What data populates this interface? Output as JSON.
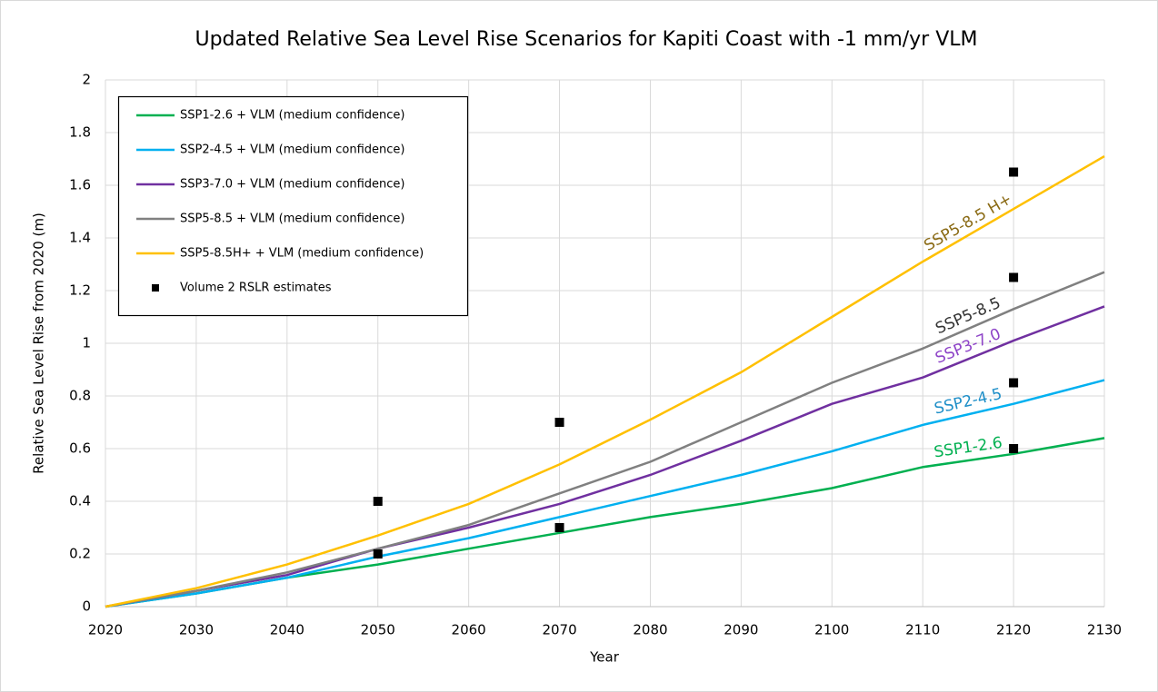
{
  "chart_data": {
    "type": "line",
    "title": "Updated Relative Sea Level Rise Scenarios for Kapiti Coast with -1 mm/yr VLM",
    "x_label": "Year",
    "y_label": "Relative Sea Level Rise from 2020 (m)",
    "x": [
      2020,
      2030,
      2040,
      2050,
      2060,
      2070,
      2080,
      2090,
      2100,
      2110,
      2120,
      2130
    ],
    "xlim": [
      2020,
      2130
    ],
    "xticks": [
      2020,
      2030,
      2040,
      2050,
      2060,
      2070,
      2080,
      2090,
      2100,
      2110,
      2120,
      2130
    ],
    "ylim": [
      0,
      2
    ],
    "yticks": [
      0,
      0.2,
      0.4,
      0.6,
      0.8,
      1,
      1.2,
      1.4,
      1.6,
      1.8,
      2
    ],
    "grid": true,
    "legend": "top-left",
    "series": [
      {
        "name": "SSP1-2.6 + VLM (medium confidence)",
        "color": "#00b050",
        "label": "SSP1-2.6",
        "label_color": "#00b050",
        "values": [
          0,
          0.05,
          0.11,
          0.16,
          0.22,
          0.28,
          0.34,
          0.39,
          0.45,
          0.53,
          0.58,
          0.64
        ]
      },
      {
        "name": "SSP2-4.5 + VLM (medium confidence)",
        "color": "#00b0f0",
        "label": "SSP2-4.5",
        "label_color": "#1f8fc8",
        "values": [
          0,
          0.05,
          0.11,
          0.19,
          0.26,
          0.34,
          0.42,
          0.5,
          0.59,
          0.69,
          0.77,
          0.86
        ]
      },
      {
        "name": "SSP3-7.0 + VLM (medium confidence)",
        "color": "#7030a0",
        "label": "SSP3-7.0",
        "label_color": "#8e44c8",
        "values": [
          0,
          0.06,
          0.12,
          0.22,
          0.3,
          0.39,
          0.5,
          0.63,
          0.77,
          0.87,
          1.01,
          1.14
        ]
      },
      {
        "name": "SSP5-8.5 + VLM (medium confidence)",
        "color": "#808080",
        "label": "SSP5-8.5",
        "label_color": "#333333",
        "values": [
          0,
          0.06,
          0.13,
          0.22,
          0.31,
          0.43,
          0.55,
          0.7,
          0.85,
          0.98,
          1.13,
          1.27
        ]
      },
      {
        "name": "SSP5-8.5H+ + VLM (medium confidence)",
        "color": "#ffc000",
        "label": "SSP5-8.5 H+",
        "label_color": "#8a6a14",
        "values": [
          0,
          0.07,
          0.16,
          0.27,
          0.39,
          0.54,
          0.71,
          0.89,
          1.1,
          1.31,
          1.51,
          1.71
        ]
      },
      {
        "name": "Volume 2 RSLR estimates",
        "color": "#000000",
        "marker": "square",
        "x": [
          2050,
          2050,
          2070,
          2070,
          2120,
          2120,
          2120,
          2120
        ],
        "values": [
          0.4,
          0.2,
          0.7,
          0.3,
          1.65,
          1.25,
          0.85,
          0.6
        ]
      }
    ]
  }
}
